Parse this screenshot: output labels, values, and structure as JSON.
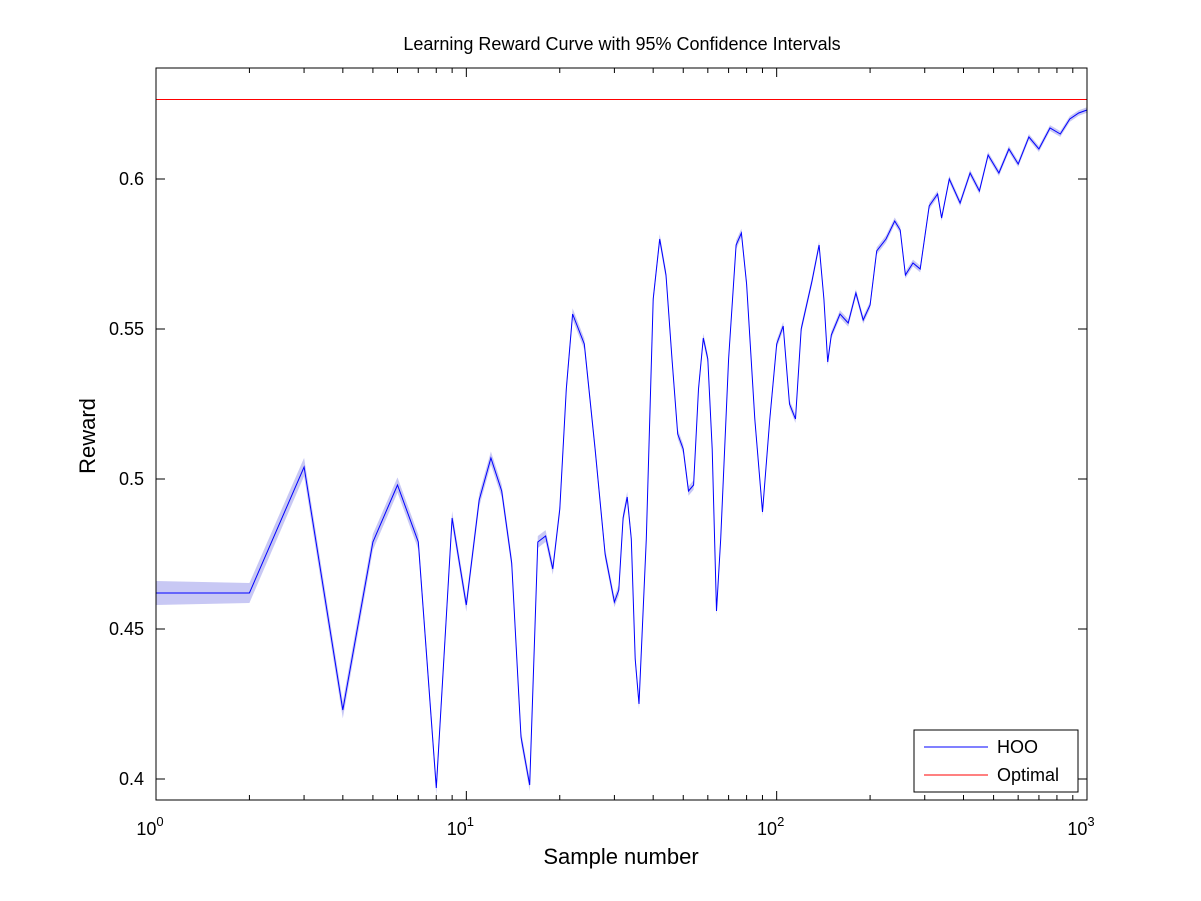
{
  "chart_data": {
    "type": "line",
    "title": "Learning Reward Curve with 95% Confidence Intervals",
    "xlabel": "Sample number",
    "ylabel": "Reward",
    "xscale": "log",
    "xlim": [
      1,
      1000
    ],
    "ylim": [
      0.393,
      0.637
    ],
    "x_ticks": [
      {
        "value": 1,
        "base": "10",
        "exp": "0"
      },
      {
        "value": 10,
        "base": "10",
        "exp": "1"
      },
      {
        "value": 100,
        "base": "10",
        "exp": "2"
      },
      {
        "value": 1000,
        "base": "10",
        "exp": "3"
      }
    ],
    "y_ticks": [
      {
        "value": 0.4,
        "label": "0.4"
      },
      {
        "value": 0.45,
        "label": "0.45"
      },
      {
        "value": 0.5,
        "label": "0.5"
      },
      {
        "value": 0.55,
        "label": "0.55"
      },
      {
        "value": 0.6,
        "label": "0.6"
      }
    ],
    "grid": false,
    "legend_position": "bottom-right",
    "confidence_band_color": "#c8c8f4",
    "series": [
      {
        "name": "HOO",
        "color": "#0000ff",
        "points": [
          [
            1,
            0.462
          ],
          [
            2,
            0.462
          ],
          [
            3,
            0.504
          ],
          [
            4,
            0.423
          ],
          [
            5,
            0.479
          ],
          [
            6,
            0.498
          ],
          [
            7,
            0.479
          ],
          [
            8,
            0.397
          ],
          [
            9,
            0.487
          ],
          [
            10,
            0.458
          ],
          [
            11,
            0.493
          ],
          [
            12,
            0.507
          ],
          [
            13,
            0.496
          ],
          [
            14,
            0.472
          ],
          [
            15,
            0.414
          ],
          [
            16,
            0.398
          ],
          [
            17,
            0.479
          ],
          [
            18,
            0.481
          ],
          [
            19,
            0.47
          ],
          [
            20,
            0.49
          ],
          [
            21,
            0.53
          ],
          [
            22,
            0.555
          ],
          [
            24,
            0.545
          ],
          [
            26,
            0.51
          ],
          [
            28,
            0.475
          ],
          [
            30,
            0.459
          ],
          [
            31,
            0.463
          ],
          [
            32,
            0.487
          ],
          [
            33,
            0.494
          ],
          [
            34,
            0.48
          ],
          [
            35,
            0.44
          ],
          [
            36,
            0.425
          ],
          [
            38,
            0.48
          ],
          [
            40,
            0.56
          ],
          [
            42,
            0.58
          ],
          [
            44,
            0.568
          ],
          [
            46,
            0.54
          ],
          [
            48,
            0.515
          ],
          [
            50,
            0.51
          ],
          [
            52,
            0.496
          ],
          [
            54,
            0.498
          ],
          [
            56,
            0.53
          ],
          [
            58,
            0.547
          ],
          [
            60,
            0.54
          ],
          [
            62,
            0.51
          ],
          [
            64,
            0.456
          ],
          [
            66,
            0.48
          ],
          [
            70,
            0.54
          ],
          [
            74,
            0.578
          ],
          [
            77,
            0.582
          ],
          [
            80,
            0.565
          ],
          [
            85,
            0.52
          ],
          [
            90,
            0.489
          ],
          [
            95,
            0.52
          ],
          [
            100,
            0.545
          ],
          [
            105,
            0.551
          ],
          [
            110,
            0.525
          ],
          [
            115,
            0.52
          ],
          [
            120,
            0.55
          ],
          [
            130,
            0.566
          ],
          [
            137,
            0.578
          ],
          [
            142,
            0.56
          ],
          [
            146,
            0.539
          ],
          [
            150,
            0.548
          ],
          [
            160,
            0.555
          ],
          [
            170,
            0.552
          ],
          [
            180,
            0.562
          ],
          [
            190,
            0.553
          ],
          [
            200,
            0.558
          ],
          [
            210,
            0.576
          ],
          [
            225,
            0.58
          ],
          [
            240,
            0.586
          ],
          [
            250,
            0.583
          ],
          [
            260,
            0.568
          ],
          [
            275,
            0.572
          ],
          [
            290,
            0.57
          ],
          [
            310,
            0.591
          ],
          [
            330,
            0.595
          ],
          [
            340,
            0.587
          ],
          [
            360,
            0.6
          ],
          [
            390,
            0.592
          ],
          [
            420,
            0.602
          ],
          [
            450,
            0.596
          ],
          [
            480,
            0.608
          ],
          [
            520,
            0.602
          ],
          [
            560,
            0.61
          ],
          [
            600,
            0.605
          ],
          [
            650,
            0.614
          ],
          [
            700,
            0.61
          ],
          [
            760,
            0.617
          ],
          [
            820,
            0.615
          ],
          [
            880,
            0.62
          ],
          [
            940,
            0.622
          ],
          [
            1000,
            0.623
          ]
        ]
      },
      {
        "name": "Optimal",
        "color": "#ff0000",
        "points": [
          [
            1,
            0.6265
          ],
          [
            1000,
            0.6265
          ]
        ]
      }
    ]
  }
}
